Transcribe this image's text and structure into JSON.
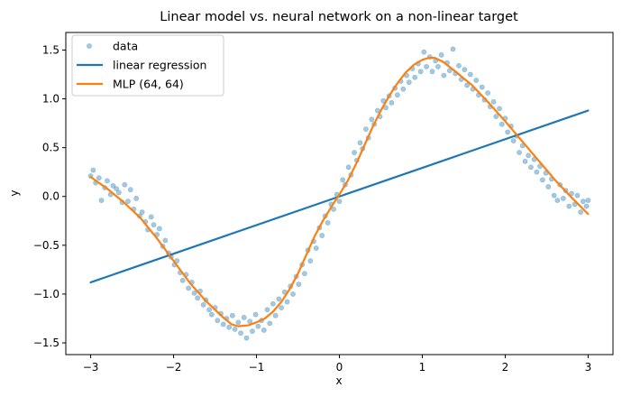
{
  "chart_data": {
    "type": "scatter",
    "title": "Linear model vs. neural network on a non-linear target",
    "xlabel": "x",
    "ylabel": "y",
    "xlim": [
      -3.3,
      3.3
    ],
    "ylim": [
      -1.62,
      1.68
    ],
    "xticks": [
      -3,
      -2,
      -1,
      0,
      1,
      2,
      3
    ],
    "xtick_labels": [
      "−3",
      "−2",
      "−1",
      "0",
      "1",
      "2",
      "3"
    ],
    "yticks": [
      -1.5,
      -1.0,
      -0.5,
      0.0,
      0.5,
      1.0,
      1.5
    ],
    "ytick_labels": [
      "−1.5",
      "−1.0",
      "−0.5",
      "0.0",
      "0.5",
      "1.0",
      "1.5"
    ],
    "grid": false,
    "legend_position": "top-left",
    "series": [
      {
        "name": "data",
        "kind": "scatter",
        "color": "#1f77b4",
        "opacity": 0.4,
        "points": [
          [
            -3.0,
            0.21
          ],
          [
            -2.97,
            0.27
          ],
          [
            -2.94,
            0.14
          ],
          [
            -2.9,
            0.19
          ],
          [
            -2.87,
            -0.04
          ],
          [
            -2.83,
            0.09
          ],
          [
            -2.8,
            0.16
          ],
          [
            -2.76,
            0.02
          ],
          [
            -2.73,
            0.11
          ],
          [
            -2.69,
            0.08
          ],
          [
            -2.66,
            0.04
          ],
          [
            -2.62,
            -0.06
          ],
          [
            -2.59,
            0.12
          ],
          [
            -2.55,
            -0.05
          ],
          [
            -2.52,
            0.07
          ],
          [
            -2.48,
            -0.13
          ],
          [
            -2.45,
            -0.02
          ],
          [
            -2.41,
            -0.2
          ],
          [
            -2.38,
            -0.16
          ],
          [
            -2.34,
            -0.26
          ],
          [
            -2.31,
            -0.34
          ],
          [
            -2.27,
            -0.21
          ],
          [
            -2.24,
            -0.29
          ],
          [
            -2.2,
            -0.39
          ],
          [
            -2.17,
            -0.33
          ],
          [
            -2.13,
            -0.51
          ],
          [
            -2.1,
            -0.45
          ],
          [
            -2.06,
            -0.58
          ],
          [
            -2.03,
            -0.62
          ],
          [
            -1.99,
            -0.7
          ],
          [
            -1.96,
            -0.66
          ],
          [
            -1.92,
            -0.78
          ],
          [
            -1.89,
            -0.86
          ],
          [
            -1.85,
            -0.8
          ],
          [
            -1.82,
            -0.94
          ],
          [
            -1.78,
            -0.88
          ],
          [
            -1.75,
            -0.99
          ],
          [
            -1.71,
            -1.04
          ],
          [
            -1.68,
            -0.97
          ],
          [
            -1.64,
            -1.11
          ],
          [
            -1.61,
            -1.06
          ],
          [
            -1.57,
            -1.16
          ],
          [
            -1.54,
            -1.21
          ],
          [
            -1.5,
            -1.14
          ],
          [
            -1.47,
            -1.27
          ],
          [
            -1.43,
            -1.2
          ],
          [
            -1.4,
            -1.31
          ],
          [
            -1.36,
            -1.25
          ],
          [
            -1.33,
            -1.34
          ],
          [
            -1.29,
            -1.22
          ],
          [
            -1.26,
            -1.36
          ],
          [
            -1.22,
            -1.29
          ],
          [
            -1.19,
            -1.4
          ],
          [
            -1.15,
            -1.24
          ],
          [
            -1.12,
            -1.45
          ],
          [
            -1.08,
            -1.28
          ],
          [
            -1.05,
            -1.38
          ],
          [
            -1.01,
            -1.21
          ],
          [
            -0.98,
            -1.33
          ],
          [
            -0.94,
            -1.27
          ],
          [
            -0.91,
            -1.37
          ],
          [
            -0.87,
            -1.16
          ],
          [
            -0.84,
            -1.3
          ],
          [
            -0.8,
            -1.1
          ],
          [
            -0.77,
            -1.22
          ],
          [
            -0.73,
            -1.05
          ],
          [
            -0.7,
            -1.14
          ],
          [
            -0.66,
            -0.98
          ],
          [
            -0.63,
            -1.08
          ],
          [
            -0.59,
            -0.92
          ],
          [
            -0.56,
            -1.0
          ],
          [
            -0.52,
            -0.82
          ],
          [
            -0.49,
            -0.9
          ],
          [
            -0.45,
            -0.7
          ],
          [
            -0.42,
            -0.79
          ],
          [
            -0.38,
            -0.55
          ],
          [
            -0.35,
            -0.66
          ],
          [
            -0.31,
            -0.46
          ],
          [
            -0.28,
            -0.53
          ],
          [
            -0.24,
            -0.32
          ],
          [
            -0.21,
            -0.4
          ],
          [
            -0.17,
            -0.2
          ],
          [
            -0.14,
            -0.27
          ],
          [
            -0.1,
            -0.08
          ],
          [
            -0.07,
            -0.13
          ],
          [
            -0.03,
            0.02
          ],
          [
            0.0,
            -0.05
          ],
          [
            0.04,
            0.17
          ],
          [
            0.07,
            0.12
          ],
          [
            0.11,
            0.3
          ],
          [
            0.14,
            0.22
          ],
          [
            0.18,
            0.45
          ],
          [
            0.21,
            0.37
          ],
          [
            0.25,
            0.55
          ],
          [
            0.28,
            0.49
          ],
          [
            0.32,
            0.69
          ],
          [
            0.35,
            0.6
          ],
          [
            0.39,
            0.79
          ],
          [
            0.42,
            0.74
          ],
          [
            0.46,
            0.88
          ],
          [
            0.49,
            0.82
          ],
          [
            0.53,
            0.98
          ],
          [
            0.56,
            0.91
          ],
          [
            0.6,
            1.03
          ],
          [
            0.63,
            0.96
          ],
          [
            0.67,
            1.11
          ],
          [
            0.7,
            1.04
          ],
          [
            0.74,
            1.18
          ],
          [
            0.77,
            1.1
          ],
          [
            0.81,
            1.24
          ],
          [
            0.84,
            1.17
          ],
          [
            0.88,
            1.31
          ],
          [
            0.91,
            1.22
          ],
          [
            0.95,
            1.36
          ],
          [
            0.98,
            1.28
          ],
          [
            1.02,
            1.48
          ],
          [
            1.05,
            1.33
          ],
          [
            1.09,
            1.43
          ],
          [
            1.12,
            1.28
          ],
          [
            1.16,
            1.39
          ],
          [
            1.19,
            1.33
          ],
          [
            1.23,
            1.45
          ],
          [
            1.26,
            1.24
          ],
          [
            1.3,
            1.37
          ],
          [
            1.33,
            1.29
          ],
          [
            1.37,
            1.51
          ],
          [
            1.4,
            1.26
          ],
          [
            1.44,
            1.34
          ],
          [
            1.47,
            1.2
          ],
          [
            1.51,
            1.3
          ],
          [
            1.54,
            1.14
          ],
          [
            1.58,
            1.25
          ],
          [
            1.61,
            1.1
          ],
          [
            1.65,
            1.19
          ],
          [
            1.68,
            1.04
          ],
          [
            1.72,
            1.12
          ],
          [
            1.75,
            0.99
          ],
          [
            1.79,
            1.06
          ],
          [
            1.82,
            0.92
          ],
          [
            1.86,
            0.97
          ],
          [
            1.89,
            0.82
          ],
          [
            1.93,
            0.9
          ],
          [
            1.96,
            0.74
          ],
          [
            2.0,
            0.8
          ],
          [
            2.03,
            0.66
          ],
          [
            2.07,
            0.72
          ],
          [
            2.1,
            0.57
          ],
          [
            2.14,
            0.62
          ],
          [
            2.17,
            0.45
          ],
          [
            2.21,
            0.52
          ],
          [
            2.24,
            0.36
          ],
          [
            2.28,
            0.42
          ],
          [
            2.31,
            0.3
          ],
          [
            2.35,
            0.38
          ],
          [
            2.38,
            0.25
          ],
          [
            2.42,
            0.31
          ],
          [
            2.45,
            0.17
          ],
          [
            2.49,
            0.24
          ],
          [
            2.52,
            0.1
          ],
          [
            2.56,
            0.18
          ],
          [
            2.59,
            0.01
          ],
          [
            2.63,
            -0.04
          ],
          [
            2.66,
            0.12
          ],
          [
            2.7,
            -0.02
          ],
          [
            2.73,
            0.06
          ],
          [
            2.77,
            -0.1
          ],
          [
            2.8,
            0.03
          ],
          [
            2.84,
            -0.08
          ],
          [
            2.87,
            0.01
          ],
          [
            2.91,
            -0.16
          ],
          [
            2.94,
            -0.05
          ],
          [
            2.98,
            -0.1
          ],
          [
            3.0,
            -0.04
          ]
        ]
      },
      {
        "name": "linear regression",
        "kind": "line",
        "color": "#1f77b4",
        "points": [
          [
            -3.0,
            -0.88
          ],
          [
            3.0,
            0.88
          ]
        ]
      },
      {
        "name": "MLP (64, 64)",
        "kind": "line",
        "color": "#ff7f0e",
        "points": [
          [
            -3.0,
            0.2
          ],
          [
            -2.8,
            0.08
          ],
          [
            -2.6,
            -0.06
          ],
          [
            -2.4,
            -0.22
          ],
          [
            -2.2,
            -0.43
          ],
          [
            -2.0,
            -0.66
          ],
          [
            -1.8,
            -0.89
          ],
          [
            -1.6,
            -1.08
          ],
          [
            -1.4,
            -1.24
          ],
          [
            -1.3,
            -1.31
          ],
          [
            -1.22,
            -1.33
          ],
          [
            -1.1,
            -1.32
          ],
          [
            -1.0,
            -1.29
          ],
          [
            -0.9,
            -1.25
          ],
          [
            -0.8,
            -1.18
          ],
          [
            -0.7,
            -1.08
          ],
          [
            -0.6,
            -0.95
          ],
          [
            -0.5,
            -0.79
          ],
          [
            -0.4,
            -0.6
          ],
          [
            -0.3,
            -0.41
          ],
          [
            -0.2,
            -0.25
          ],
          [
            -0.1,
            -0.11
          ],
          [
            0.0,
            0.02
          ],
          [
            0.1,
            0.16
          ],
          [
            0.2,
            0.33
          ],
          [
            0.3,
            0.52
          ],
          [
            0.4,
            0.71
          ],
          [
            0.5,
            0.88
          ],
          [
            0.6,
            1.03
          ],
          [
            0.7,
            1.16
          ],
          [
            0.8,
            1.27
          ],
          [
            0.9,
            1.35
          ],
          [
            1.0,
            1.4
          ],
          [
            1.08,
            1.42
          ],
          [
            1.15,
            1.42
          ],
          [
            1.25,
            1.38
          ],
          [
            1.4,
            1.28
          ],
          [
            1.6,
            1.14
          ],
          [
            1.8,
            0.96
          ],
          [
            2.0,
            0.77
          ],
          [
            2.2,
            0.57
          ],
          [
            2.4,
            0.37
          ],
          [
            2.6,
            0.17
          ],
          [
            2.8,
            -0.01
          ],
          [
            3.0,
            -0.18
          ]
        ]
      }
    ]
  }
}
